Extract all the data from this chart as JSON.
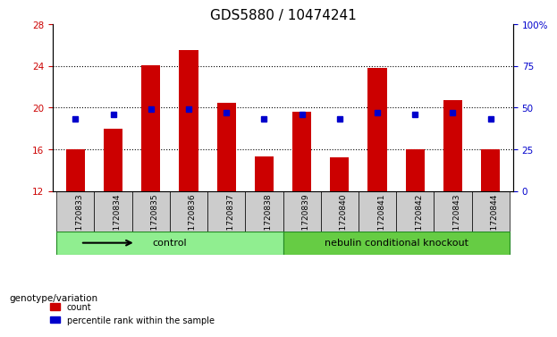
{
  "title": "GDS5880 / 10474241",
  "samples": [
    "GSM1720833",
    "GSM1720834",
    "GSM1720835",
    "GSM1720836",
    "GSM1720837",
    "GSM1720838",
    "GSM1720839",
    "GSM1720840",
    "GSM1720841",
    "GSM1720842",
    "GSM1720843",
    "GSM1720844"
  ],
  "bar_tops": [
    16.0,
    18.0,
    24.1,
    25.5,
    20.5,
    15.3,
    19.6,
    15.2,
    23.8,
    16.0,
    20.7,
    16.0
  ],
  "bar_bottom": 12,
  "blue_dots": [
    17.9,
    18.3,
    19.5,
    19.6,
    19.1,
    17.9,
    18.3,
    17.9,
    19.0,
    18.3,
    19.0,
    17.9
  ],
  "ylim_left": [
    12,
    28
  ],
  "yticks_left": [
    12,
    16,
    20,
    24,
    28
  ],
  "ylim_right": [
    0,
    100
  ],
  "yticks_right": [
    0,
    25,
    50,
    75,
    100
  ],
  "bar_color": "#cc0000",
  "dot_color": "#0000cc",
  "control_color": "#90ee90",
  "knockout_color": "#66cc66",
  "xlabel_color": "#cc0000",
  "ylabel_right_color": "#0000cc",
  "control_label": "control",
  "knockout_label": "nebulin conditional knockout",
  "genotype_label": "genotype/variation",
  "legend_count": "count",
  "legend_percentile": "percentile rank within the sample",
  "n_control": 6,
  "n_knockout": 6,
  "background_plot": "#ffffff",
  "background_xlabel": "#cccccc",
  "title_fontsize": 11,
  "axis_fontsize": 8,
  "tick_fontsize": 7.5
}
